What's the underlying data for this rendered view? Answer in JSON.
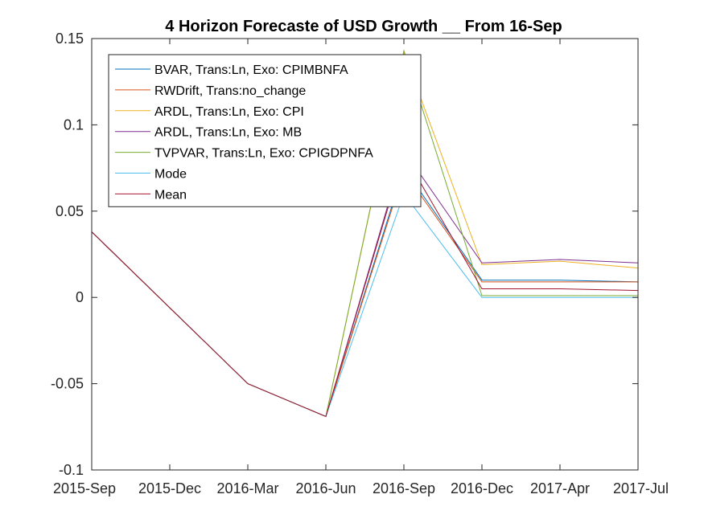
{
  "chart_data": {
    "type": "line",
    "title": "4 Horizon Forecaste of USD Growth __ From 16-Sep",
    "xlabel": "",
    "ylabel": "",
    "categories": [
      "2015-Sep",
      "2015-Dec",
      "2016-Mar",
      "2016-Jun",
      "2016-Sep",
      "2016-Dec",
      "2017-Apr",
      "2017-Jul"
    ],
    "ylim": [
      -0.1,
      0.15
    ],
    "yticks": [
      -0.1,
      -0.05,
      0,
      0.05,
      0.1,
      0.15
    ],
    "ytick_labels": [
      "-0.1",
      "-0.05",
      "0",
      "0.05",
      "0.1",
      "0.15"
    ],
    "grid": false,
    "legend_position": "top-left",
    "series": [
      {
        "name": "BVAR, Trans:Ln, Exo: CPIMBNFA",
        "color": "#0072BD",
        "values": [
          0.038,
          null,
          -0.05,
          -0.069,
          0.075,
          0.01,
          0.01,
          0.009
        ]
      },
      {
        "name": "RWDrift, Trans:no_change",
        "color": "#D95319",
        "values": [
          0.038,
          null,
          -0.05,
          -0.069,
          0.073,
          0.009,
          0.009,
          0.009
        ]
      },
      {
        "name": "ARDL, Trans:Ln, Exo: CPI",
        "color": "#EDB120",
        "values": [
          0.038,
          null,
          -0.05,
          -0.069,
          0.142,
          0.019,
          0.021,
          0.017
        ]
      },
      {
        "name": "ARDL, Trans:Ln, Exo: MB",
        "color": "#7E2F8E",
        "values": [
          0.038,
          null,
          -0.05,
          -0.069,
          0.085,
          0.02,
          0.022,
          0.02
        ]
      },
      {
        "name": "TVPVAR, Trans:Ln, Exo: CPIGDPNFA",
        "color": "#77AC30",
        "values": [
          0.038,
          null,
          -0.05,
          -0.069,
          0.143,
          0.001,
          0.001,
          0.001
        ]
      },
      {
        "name": "Mode",
        "color": "#4DBEEE",
        "values": [
          0.038,
          null,
          -0.05,
          -0.069,
          0.06,
          0.0,
          0.0,
          0.0
        ]
      },
      {
        "name": "Mean",
        "color": "#A2142F",
        "values": [
          0.038,
          null,
          -0.05,
          -0.069,
          0.083,
          0.005,
          0.005,
          0.004
        ]
      }
    ]
  }
}
